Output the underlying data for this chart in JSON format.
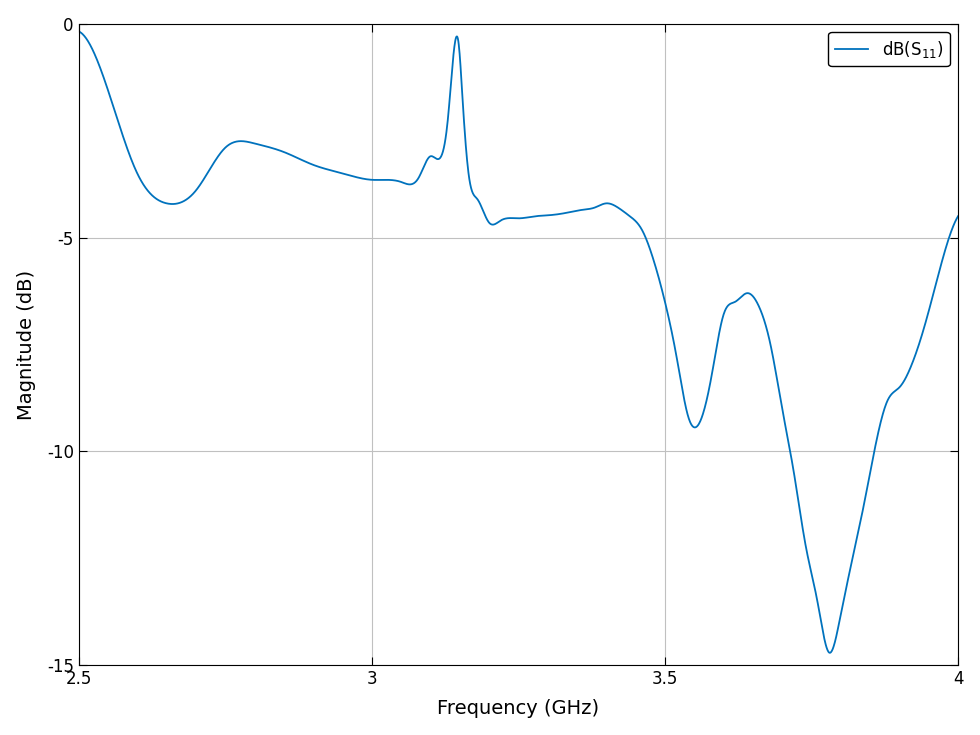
{
  "title": "",
  "xlabel": "Frequency (GHz)",
  "ylabel": "Magnitude (dB)",
  "xlim": [
    2.5,
    4.0
  ],
  "ylim": [
    -15,
    0
  ],
  "xticks": [
    2.5,
    3.0,
    3.5,
    4.0
  ],
  "yticks": [
    0,
    -5,
    -10,
    -15
  ],
  "grid_color": "#c0c0c0",
  "line_color": "#0072bd",
  "line_width": 1.3,
  "bg_color": "#ffffff",
  "keypoints_x": [
    2.5,
    2.53,
    2.6,
    2.65,
    2.7,
    2.75,
    2.8,
    2.85,
    2.9,
    2.95,
    3.0,
    3.05,
    3.08,
    3.1,
    3.13,
    3.148,
    3.155,
    3.165,
    3.18,
    3.2,
    3.22,
    3.25,
    3.28,
    3.3,
    3.32,
    3.34,
    3.36,
    3.38,
    3.4,
    3.42,
    3.44,
    3.46,
    3.48,
    3.5,
    3.52,
    3.54,
    3.56,
    3.58,
    3.6,
    3.62,
    3.64,
    3.66,
    3.68,
    3.7,
    3.72,
    3.74,
    3.76,
    3.78,
    3.8,
    3.82,
    3.84,
    3.86,
    3.88,
    3.9,
    3.92,
    3.94,
    3.96,
    3.98,
    4.0
  ],
  "keypoints_y": [
    -0.18,
    -0.8,
    -3.5,
    -4.2,
    -3.9,
    -2.9,
    -2.8,
    -3.0,
    -3.3,
    -3.5,
    -3.65,
    -3.7,
    -3.6,
    -3.1,
    -2.2,
    -0.45,
    -1.8,
    -3.5,
    -4.1,
    -4.65,
    -4.6,
    -4.55,
    -4.5,
    -4.48,
    -4.45,
    -4.4,
    -4.35,
    -4.3,
    -4.2,
    -4.3,
    -4.5,
    -4.8,
    -5.5,
    -6.5,
    -7.8,
    -9.2,
    -9.3,
    -8.2,
    -6.8,
    -6.5,
    -6.3,
    -6.6,
    -7.5,
    -9.0,
    -10.5,
    -12.2,
    -13.5,
    -14.7,
    -13.8,
    -12.5,
    -11.2,
    -9.8,
    -8.8,
    -8.5,
    -8.0,
    -7.2,
    -6.2,
    -5.2,
    -4.5
  ]
}
